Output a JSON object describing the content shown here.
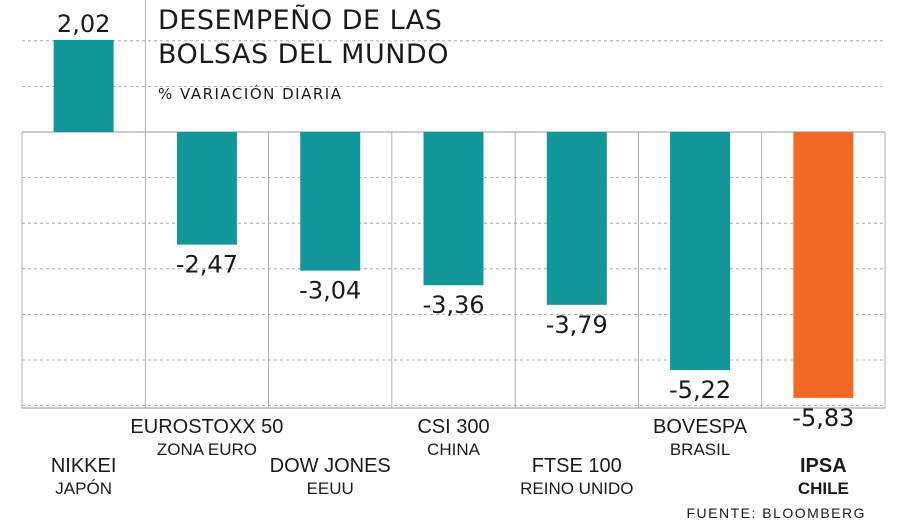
{
  "header": {
    "title": "DESEMPEÑO DE LAS\nBOLSAS DEL MUNDO",
    "subtitle": "% VARIACIÓN DIARIA"
  },
  "source": "FUENTE: BLOOMBERG",
  "colors": {
    "bar": "#11979a",
    "highlight": "#f26a21",
    "grid": "#9a9a9a",
    "text": "#1a1a1a"
  },
  "chart_data": {
    "type": "bar",
    "title": "DESEMPEÑO DE LAS BOLSAS DEL MUNDO",
    "subtitle": "% VARIACIÓN DIARIA",
    "categories": [
      "NIKKEI",
      "EUROSTOXX 50",
      "DOW JONES",
      "CSI 300",
      "FTSE 100",
      "BOVESPA",
      "IPSA"
    ],
    "countries": [
      "JAPÓN",
      "ZONA EURO",
      "EEUU",
      "CHINA",
      "REINO UNIDO",
      "BRASIL",
      "CHILE"
    ],
    "values": [
      2.02,
      -2.47,
      -3.04,
      -3.36,
      -3.79,
      -5.22,
      -5.83
    ],
    "value_labels": [
      "2,02",
      "-2,47",
      "-3,04",
      "-3,36",
      "-3,79",
      "-5,22",
      "-5,83"
    ],
    "highlight": "IPSA",
    "ylim": [
      -6,
      2.5
    ],
    "grid": true,
    "xlabel": "",
    "ylabel": ""
  }
}
